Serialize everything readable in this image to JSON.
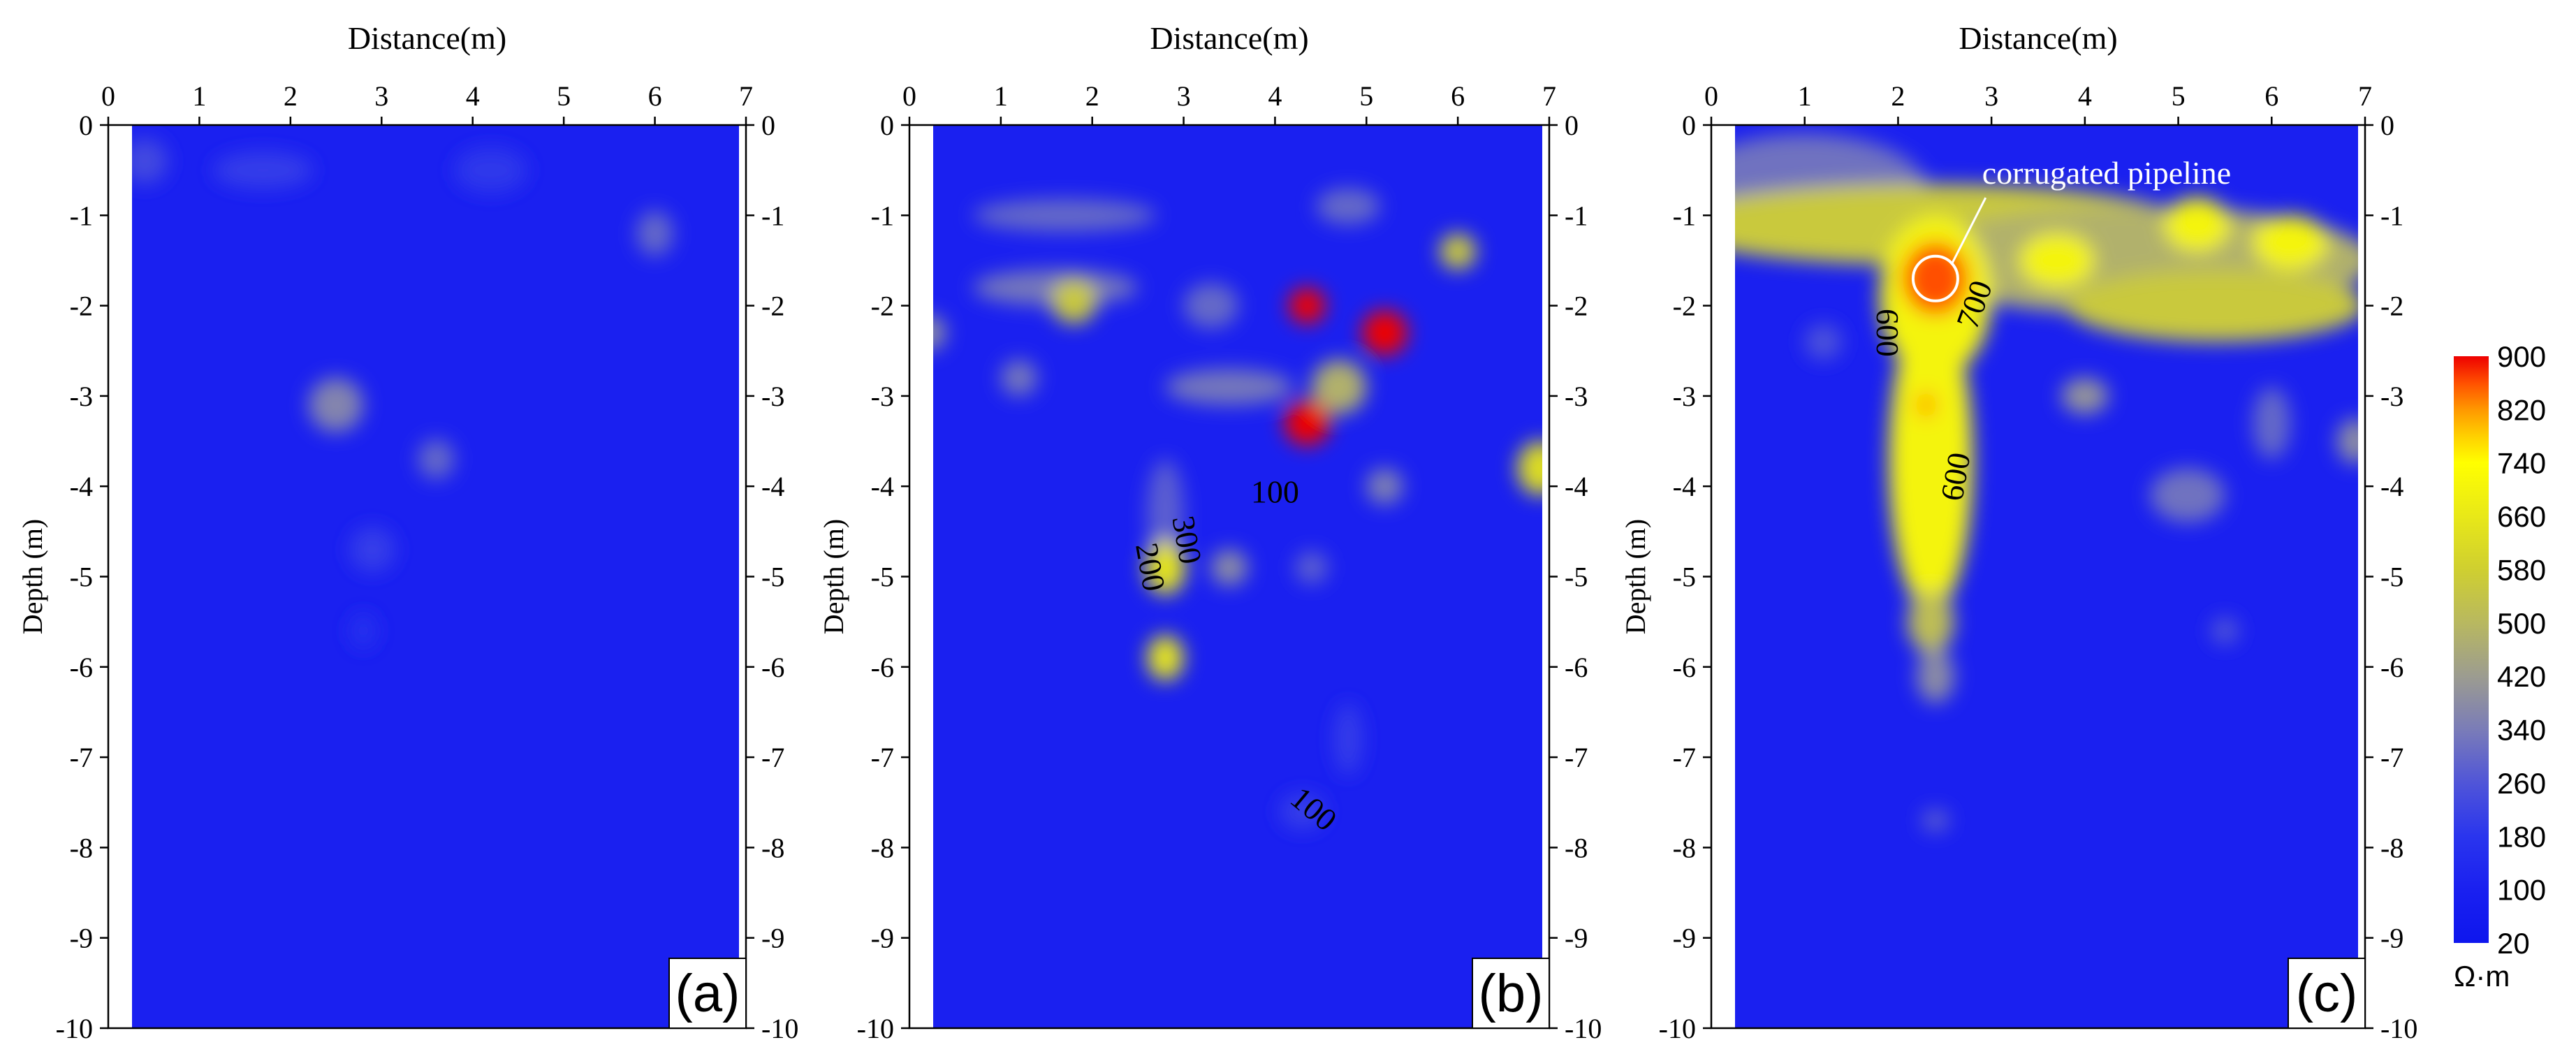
{
  "chart_data": [
    {
      "type": "heatmap",
      "panel_label": "(a)",
      "xlabel": "Distance(m)",
      "ylabel": "Depth (m)",
      "xlim": [
        0,
        7
      ],
      "ylim": [
        -10,
        0
      ],
      "x_ticks": [
        "0",
        "1",
        "2",
        "3",
        "4",
        "5",
        "6",
        "7"
      ],
      "y_ticks": [
        "0",
        "-1",
        "-2",
        "-3",
        "-4",
        "-5",
        "-6",
        "-7",
        "-8",
        "-9",
        "-10"
      ],
      "background_value": 100,
      "anomalies": [
        {
          "x": 0.4,
          "y": -0.4,
          "rx": 0.25,
          "ry": 0.25,
          "value": 230
        },
        {
          "x": 1.7,
          "y": -0.5,
          "rx": 0.55,
          "ry": 0.2,
          "value": 200
        },
        {
          "x": 4.2,
          "y": -0.5,
          "rx": 0.4,
          "ry": 0.25,
          "value": 190
        },
        {
          "x": 6.0,
          "y": -1.2,
          "rx": 0.2,
          "ry": 0.25,
          "value": 300
        },
        {
          "x": 2.5,
          "y": -3.1,
          "rx": 0.3,
          "ry": 0.3,
          "value": 360
        },
        {
          "x": 3.6,
          "y": -3.7,
          "rx": 0.2,
          "ry": 0.22,
          "value": 300
        },
        {
          "x": 2.9,
          "y": -4.7,
          "rx": 0.25,
          "ry": 0.25,
          "value": 200
        },
        {
          "x": 2.8,
          "y": -5.6,
          "rx": 0.15,
          "ry": 0.2,
          "value": 170
        }
      ],
      "contour_labels": [],
      "annotations": []
    },
    {
      "type": "heatmap",
      "panel_label": "(b)",
      "xlabel": "Distance(m)",
      "ylabel": "Depth (m)",
      "xlim": [
        0,
        7
      ],
      "ylim": [
        -10,
        0
      ],
      "x_ticks": [
        "0",
        "1",
        "2",
        "3",
        "4",
        "5",
        "6",
        "7"
      ],
      "y_ticks": [
        "0",
        "-1",
        "-2",
        "-3",
        "-4",
        "-5",
        "-6",
        "-7",
        "-8",
        "-9",
        "-10"
      ],
      "background_value": 100,
      "anomalies": [
        {
          "x": 1.7,
          "y": -1.0,
          "rx": 1.0,
          "ry": 0.18,
          "value": 300
        },
        {
          "x": 4.8,
          "y": -0.9,
          "rx": 0.35,
          "ry": 0.2,
          "value": 300
        },
        {
          "x": 6.0,
          "y": -1.4,
          "rx": 0.2,
          "ry": 0.2,
          "value": 560
        },
        {
          "x": 1.6,
          "y": -1.8,
          "rx": 0.9,
          "ry": 0.2,
          "value": 330
        },
        {
          "x": 1.8,
          "y": -1.95,
          "rx": 0.25,
          "ry": 0.25,
          "value": 560
        },
        {
          "x": 3.3,
          "y": -2.0,
          "rx": 0.3,
          "ry": 0.25,
          "value": 300
        },
        {
          "x": 4.35,
          "y": -2.0,
          "rx": 0.2,
          "ry": 0.2,
          "value": 900
        },
        {
          "x": 5.2,
          "y": -2.3,
          "rx": 0.25,
          "ry": 0.25,
          "value": 900
        },
        {
          "x": 0.2,
          "y": -2.3,
          "rx": 0.2,
          "ry": 0.2,
          "value": 380
        },
        {
          "x": 1.2,
          "y": -2.8,
          "rx": 0.2,
          "ry": 0.2,
          "value": 330
        },
        {
          "x": 3.5,
          "y": -2.9,
          "rx": 0.7,
          "ry": 0.2,
          "value": 330
        },
        {
          "x": 4.7,
          "y": -2.9,
          "rx": 0.3,
          "ry": 0.3,
          "value": 480
        },
        {
          "x": 4.35,
          "y": -3.3,
          "rx": 0.25,
          "ry": 0.25,
          "value": 900
        },
        {
          "x": 6.9,
          "y": -3.8,
          "rx": 0.25,
          "ry": 0.3,
          "value": 620
        },
        {
          "x": 5.2,
          "y": -4.0,
          "rx": 0.2,
          "ry": 0.2,
          "value": 350
        },
        {
          "x": 2.8,
          "y": -4.3,
          "rx": 0.2,
          "ry": 0.6,
          "value": 280
        },
        {
          "x": 2.8,
          "y": -4.9,
          "rx": 0.22,
          "ry": 0.3,
          "value": 650
        },
        {
          "x": 3.5,
          "y": -4.9,
          "rx": 0.2,
          "ry": 0.2,
          "value": 380
        },
        {
          "x": 4.4,
          "y": -4.9,
          "rx": 0.18,
          "ry": 0.18,
          "value": 280
        },
        {
          "x": 2.8,
          "y": -5.9,
          "rx": 0.2,
          "ry": 0.25,
          "value": 650
        },
        {
          "x": 4.8,
          "y": -6.8,
          "rx": 0.15,
          "ry": 0.4,
          "value": 200
        },
        {
          "x": 4.3,
          "y": -7.6,
          "rx": 0.25,
          "ry": 0.2,
          "value": 200
        }
      ],
      "contour_labels": [
        {
          "text": "100",
          "x": 4.0,
          "y": -4.1,
          "rotate": 0
        },
        {
          "text": "300",
          "x": 3.0,
          "y": -4.6,
          "rotate": 80
        },
        {
          "text": "200",
          "x": 2.6,
          "y": -4.9,
          "rotate": 80
        },
        {
          "text": "100",
          "x": 4.4,
          "y": -7.6,
          "rotate": 40
        }
      ],
      "annotations": []
    },
    {
      "type": "heatmap",
      "panel_label": "(c)",
      "xlabel": "Distance(m)",
      "ylabel": "Depth (m)",
      "xlim": [
        0,
        7
      ],
      "ylim": [
        -10,
        0
      ],
      "x_ticks": [
        "0",
        "1",
        "2",
        "3",
        "4",
        "5",
        "6",
        "7"
      ],
      "y_ticks": [
        "0",
        "-1",
        "-2",
        "-3",
        "-4",
        "-5",
        "-6",
        "-7",
        "-8",
        "-9",
        "-10"
      ],
      "background_value": 100,
      "anomalies": [
        {
          "x": 1.0,
          "y": -0.7,
          "rx": 1.3,
          "ry": 0.6,
          "value": 320
        },
        {
          "x": 2.3,
          "y": -1.1,
          "rx": 2.8,
          "ry": 0.45,
          "value": 560
        },
        {
          "x": 4.6,
          "y": -1.5,
          "rx": 2.5,
          "ry": 0.6,
          "value": 480
        },
        {
          "x": 5.4,
          "y": -2.0,
          "rx": 1.6,
          "ry": 0.4,
          "value": 560
        },
        {
          "x": 6.2,
          "y": -1.3,
          "rx": 0.4,
          "ry": 0.3,
          "value": 700
        },
        {
          "x": 5.2,
          "y": -1.1,
          "rx": 0.35,
          "ry": 0.3,
          "value": 700
        },
        {
          "x": 3.7,
          "y": -1.5,
          "rx": 0.4,
          "ry": 0.3,
          "value": 700
        },
        {
          "x": 2.4,
          "y": -1.9,
          "rx": 0.6,
          "ry": 0.9,
          "value": 700
        },
        {
          "x": 2.35,
          "y": -3.7,
          "rx": 0.45,
          "ry": 1.7,
          "value": 700
        },
        {
          "x": 2.4,
          "y": -1.7,
          "rx": 0.35,
          "ry": 0.4,
          "value": 860
        },
        {
          "x": 2.3,
          "y": -3.1,
          "rx": 0.12,
          "ry": 0.15,
          "value": 800
        },
        {
          "x": 2.35,
          "y": -5.5,
          "rx": 0.25,
          "ry": 0.35,
          "value": 520
        },
        {
          "x": 2.4,
          "y": -6.1,
          "rx": 0.2,
          "ry": 0.3,
          "value": 380
        },
        {
          "x": 2.4,
          "y": -7.7,
          "rx": 0.15,
          "ry": 0.12,
          "value": 280
        },
        {
          "x": 4.0,
          "y": -3.0,
          "rx": 0.25,
          "ry": 0.2,
          "value": 400
        },
        {
          "x": 5.1,
          "y": -4.1,
          "rx": 0.4,
          "ry": 0.3,
          "value": 320
        },
        {
          "x": 6.0,
          "y": -3.3,
          "rx": 0.2,
          "ry": 0.4,
          "value": 300
        },
        {
          "x": 6.9,
          "y": -3.5,
          "rx": 0.2,
          "ry": 0.25,
          "value": 380
        },
        {
          "x": 5.5,
          "y": -5.6,
          "rx": 0.15,
          "ry": 0.15,
          "value": 260
        },
        {
          "x": 1.2,
          "y": -2.4,
          "rx": 0.2,
          "ry": 0.2,
          "value": 250
        }
      ],
      "contour_labels": [
        {
          "text": "600",
          "x": 1.85,
          "y": -2.3,
          "rotate": 90
        },
        {
          "text": "700",
          "x": 2.85,
          "y": -2.0,
          "rotate": -70
        },
        {
          "text": "600",
          "x": 2.65,
          "y": -3.9,
          "rotate": -80
        }
      ],
      "annotations": [
        {
          "text": "corrugated pipeline",
          "target_x": 2.4,
          "target_y": -1.7,
          "text_x": 2.9,
          "text_y": -0.65
        }
      ]
    }
  ],
  "colorbar": {
    "unit": "Ω·m",
    "ticks": [
      "900",
      "820",
      "740",
      "660",
      "580",
      "500",
      "420",
      "340",
      "260",
      "180",
      "100",
      "20"
    ],
    "min": 20,
    "max": 900,
    "stops": [
      {
        "value": 20,
        "color": "#0e16ee"
      },
      {
        "value": 100,
        "color": "#1a20f0"
      },
      {
        "value": 180,
        "color": "#2a35ee"
      },
      {
        "value": 260,
        "color": "#5055d8"
      },
      {
        "value": 340,
        "color": "#7a7cb8"
      },
      {
        "value": 420,
        "color": "#9c9c90"
      },
      {
        "value": 500,
        "color": "#b8b860"
      },
      {
        "value": 580,
        "color": "#cfcf30"
      },
      {
        "value": 660,
        "color": "#e8e818"
      },
      {
        "value": 740,
        "color": "#ffff00"
      },
      {
        "value": 780,
        "color": "#ffd000"
      },
      {
        "value": 820,
        "color": "#ff9800"
      },
      {
        "value": 860,
        "color": "#ff5000"
      },
      {
        "value": 900,
        "color": "#ee0000"
      }
    ]
  }
}
